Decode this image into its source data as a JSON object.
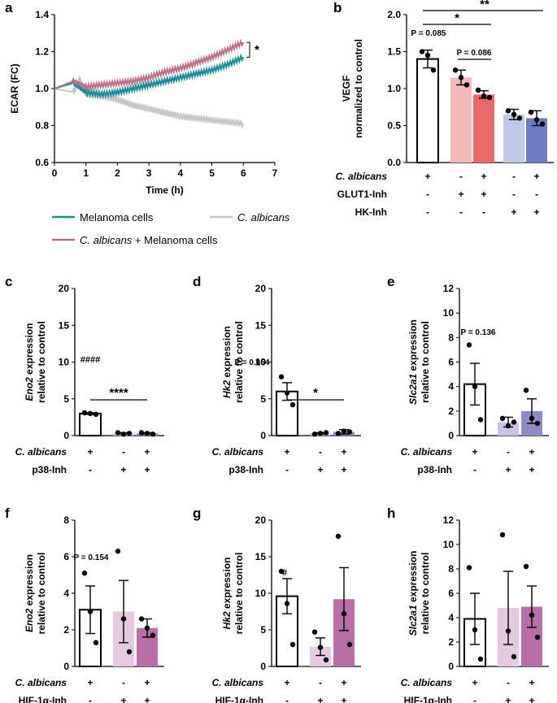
{
  "chart_data": [
    {
      "panel": "a",
      "type": "line",
      "xlabel": "Time (h)",
      "ylabel": "ECAR (FC)",
      "xlim": [
        0,
        7
      ],
      "ylim": [
        0.6,
        1.4
      ],
      "xticks": [
        "0",
        "1",
        "2",
        "3",
        "4",
        "5",
        "6",
        "7"
      ],
      "yticks": [
        "0.6",
        "0.8",
        "1.0",
        "1.2",
        "1.4"
      ],
      "significance": "*",
      "series": [
        {
          "name": "Melanoma cells",
          "color": "#1f8a94",
          "x": [
            0,
            0.6,
            1.0,
            1.5,
            2.0,
            2.5,
            3.0,
            3.5,
            4.0,
            4.5,
            5.0,
            5.5,
            6.0
          ],
          "values": [
            1.0,
            1.03,
            0.98,
            0.97,
            0.98,
            1.0,
            1.02,
            1.04,
            1.06,
            1.08,
            1.1,
            1.13,
            1.17
          ]
        },
        {
          "name": "C. albicans + Melanoma cells",
          "color": "#b87289",
          "x": [
            0,
            0.6,
            1.0,
            1.5,
            2.0,
            2.5,
            3.0,
            3.5,
            4.0,
            4.5,
            5.0,
            5.5,
            6.0
          ],
          "values": [
            1.0,
            1.04,
            1.01,
            1.02,
            1.03,
            1.04,
            1.06,
            1.09,
            1.11,
            1.14,
            1.17,
            1.21,
            1.25
          ]
        },
        {
          "name": "C. albicans",
          "color": "#c6c6c6",
          "x": [
            0,
            0.6,
            0.8,
            1.0,
            1.5,
            2.0,
            2.5,
            3.0,
            3.5,
            4.0,
            4.5,
            5.0,
            5.5,
            6.0
          ],
          "values": [
            1.0,
            0.98,
            1.05,
            0.97,
            0.96,
            0.94,
            0.91,
            0.89,
            0.87,
            0.85,
            0.84,
            0.83,
            0.82,
            0.81
          ]
        }
      ]
    },
    {
      "panel": "b",
      "type": "bar",
      "ylabel_lines": [
        "VEGF",
        "normalized to control"
      ],
      "ylim": [
        0,
        2.0
      ],
      "yticks": [
        "0.0",
        "0.5",
        "1.0",
        "1.5",
        "2.0"
      ],
      "values": [
        1.4,
        1.15,
        0.92,
        0.65,
        0.6
      ],
      "errors": [
        0.12,
        0.1,
        0.05,
        0.07,
        0.1
      ],
      "points": [
        [
          1.5,
          1.45,
          1.25
        ],
        [
          1.25,
          1.15,
          1.05
        ],
        [
          0.98,
          0.9,
          0.88
        ],
        [
          0.7,
          0.65,
          0.6
        ],
        [
          0.68,
          0.58,
          0.52
        ]
      ],
      "fills": [
        "#ffffff",
        "#f1b9b9",
        "#e8696c",
        "#c2c8e6",
        "#6e7ec4"
      ],
      "annotations": [
        "P = 0.085",
        "P = 0.086",
        "*",
        "**"
      ],
      "rows": [
        {
          "label": "C. albicans",
          "italic": true,
          "marks": [
            "+",
            "-",
            "+",
            "-",
            "+"
          ]
        },
        {
          "label": "GLUT1-Inh",
          "italic": false,
          "marks": [
            "-",
            "+",
            "+",
            "-",
            "-"
          ]
        },
        {
          "label": "HK-Inh",
          "italic": false,
          "marks": [
            "-",
            "-",
            "-",
            "+",
            "+"
          ]
        }
      ]
    },
    {
      "panel": "c",
      "type": "bar",
      "gene": "Eno2",
      "ylabel_suffix": " expression",
      "ylabel_line2": "relative to control",
      "ylim": [
        0,
        20
      ],
      "yticks": [
        "0",
        "5",
        "10",
        "15",
        "20"
      ],
      "values": [
        3.0,
        0.3,
        0.3
      ],
      "errors": [
        0.1,
        0.1,
        0.1
      ],
      "points": [
        [
          3.1,
          3.0,
          2.9
        ],
        [
          0.4,
          0.2,
          0.3
        ],
        [
          0.4,
          0.3,
          0.2
        ]
      ],
      "fills": [
        "#ffffff",
        "#c7c5e1",
        "#8d8cc4"
      ],
      "annotations": [
        "####",
        "****"
      ],
      "rows": [
        {
          "label": "C. albicans",
          "italic": true,
          "marks": [
            "+",
            "-",
            "+"
          ]
        },
        {
          "label": "p38-Inh",
          "italic": false,
          "marks": [
            "-",
            "+",
            "+"
          ]
        }
      ]
    },
    {
      "panel": "d",
      "type": "bar",
      "gene": "Hk2",
      "ylabel_suffix": " expression",
      "ylabel_line2": "relative to control",
      "ylim": [
        0,
        20
      ],
      "yticks": [
        "0",
        "5",
        "10",
        "15",
        "20"
      ],
      "values": [
        6.0,
        0.3,
        0.5
      ],
      "errors": [
        1.2,
        0.1,
        0.3
      ],
      "points": [
        [
          8.0,
          5.8,
          4.2
        ],
        [
          0.2,
          0.3,
          0.4
        ],
        [
          0.3,
          0.6,
          0.5
        ]
      ],
      "fills": [
        "#ffffff",
        "#c7c5e1",
        "#8d8cc4"
      ],
      "annotations": [
        "P = 0.054",
        "*"
      ],
      "rows": [
        {
          "label": "C. albicans",
          "italic": true,
          "marks": [
            "+",
            "-",
            "+"
          ]
        },
        {
          "label": "p38-Inh",
          "italic": false,
          "marks": [
            "-",
            "+",
            "+"
          ]
        }
      ]
    },
    {
      "panel": "e",
      "type": "bar",
      "gene": "Slc2a1",
      "ylabel_suffix": " expression",
      "ylabel_line2": "relative to control",
      "ylim": [
        0,
        12
      ],
      "yticks": [
        "0",
        "2",
        "4",
        "6",
        "8",
        "10",
        "12"
      ],
      "values": [
        4.2,
        1.1,
        2.0
      ],
      "errors": [
        1.7,
        0.4,
        1.0
      ],
      "points": [
        [
          7.4,
          4.0,
          1.3
        ],
        [
          1.4,
          0.8,
          1.1
        ],
        [
          3.7,
          1.4,
          1.0
        ]
      ],
      "fills": [
        "#ffffff",
        "#c7c5e1",
        "#8d8cc4"
      ],
      "annotations": [
        "P = 0.136"
      ],
      "rows": [
        {
          "label": "C. albicans",
          "italic": true,
          "marks": [
            "+",
            "-",
            "+"
          ]
        },
        {
          "label": "p38-Inh",
          "italic": false,
          "marks": [
            "-",
            "+",
            "+"
          ]
        }
      ]
    },
    {
      "panel": "f",
      "type": "bar",
      "gene": "Eno2",
      "ylabel_suffix": " expression",
      "ylabel_line2": "relative to control",
      "ylim": [
        0,
        8
      ],
      "yticks": [
        "0",
        "2",
        "4",
        "6",
        "8"
      ],
      "values": [
        3.1,
        3.0,
        2.1
      ],
      "errors": [
        1.3,
        1.7,
        0.5
      ],
      "points": [
        [
          5.1,
          3.0,
          1.3
        ],
        [
          6.3,
          2.6,
          0.8
        ],
        [
          2.6,
          2.1,
          1.7
        ]
      ],
      "fills": [
        "#ffffff",
        "#e4cbe0",
        "#b86fa6"
      ],
      "annotations": [
        "P = 0.154"
      ],
      "rows": [
        {
          "label": "C. albicans",
          "italic": true,
          "marks": [
            "+",
            "-",
            "+"
          ]
        },
        {
          "label": "HIF-1α-Inh",
          "italic": false,
          "marks": [
            "-",
            "+",
            "+"
          ]
        }
      ]
    },
    {
      "panel": "g",
      "type": "bar",
      "gene": "Hk2",
      "ylabel_suffix": " expression",
      "ylabel_line2": "relative to control",
      "ylim": [
        0,
        20
      ],
      "yticks": [
        "0",
        "5",
        "10",
        "15",
        "20"
      ],
      "values": [
        9.6,
        2.7,
        9.2
      ],
      "errors": [
        2.4,
        1.2,
        4.3
      ],
      "points": [
        [
          13.0,
          8.6,
          3.0
        ],
        [
          4.7,
          2.6,
          0.9
        ],
        [
          17.8,
          7.2,
          3.0
        ]
      ],
      "fills": [
        "#ffffff",
        "#e4cbe0",
        "#b86fa6"
      ],
      "annotations": [
        "#"
      ],
      "rows": [
        {
          "label": "C. albicans",
          "italic": true,
          "marks": [
            "+",
            "-",
            "+"
          ]
        },
        {
          "label": "HIF-1α-Inh",
          "italic": false,
          "marks": [
            "-",
            "+",
            "+"
          ]
        }
      ]
    },
    {
      "panel": "h",
      "type": "bar",
      "gene": "Slc2a1",
      "ylabel_suffix": " expression",
      "ylabel_line2": "relative to control",
      "ylim": [
        0,
        12
      ],
      "yticks": [
        "0",
        "2",
        "4",
        "6",
        "8",
        "10",
        "12"
      ],
      "values": [
        3.9,
        4.8,
        4.9
      ],
      "errors": [
        2.1,
        3.0,
        1.7
      ],
      "points": [
        [
          8.1,
          3.0,
          0.6
        ],
        [
          10.8,
          2.9,
          0.8
        ],
        [
          8.2,
          4.2,
          2.4
        ]
      ],
      "fills": [
        "#ffffff",
        "#e4cbe0",
        "#b86fa6"
      ],
      "annotations": [],
      "rows": [
        {
          "label": "C. albicans",
          "italic": true,
          "marks": [
            "+",
            "-",
            "+"
          ]
        },
        {
          "label": "HIF-1α-Inh",
          "italic": false,
          "marks": [
            "-",
            "+",
            "+"
          ]
        }
      ]
    }
  ]
}
